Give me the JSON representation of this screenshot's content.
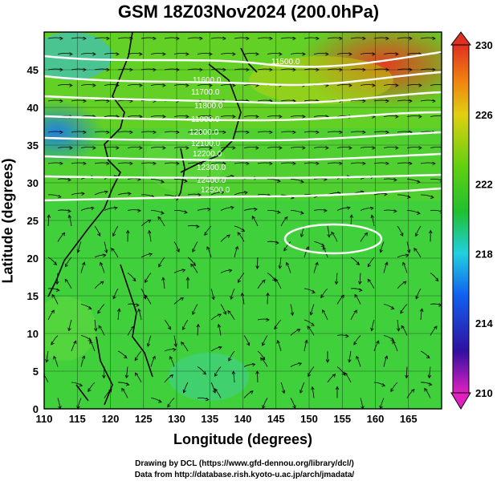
{
  "title": "GSM 18Z03Nov2024 (200.0hPa)",
  "x_axis": {
    "label": "Longitude (degrees)",
    "ticks": [
      "110",
      "115",
      "120",
      "125",
      "130",
      "135",
      "140",
      "145",
      "150",
      "155",
      "160",
      "165"
    ],
    "range": [
      110,
      170
    ]
  },
  "y_axis": {
    "label": "Latitude  (degrees)",
    "ticks": [
      "0",
      "5",
      "10",
      "15",
      "20",
      "25",
      "30",
      "35",
      "40",
      "45"
    ],
    "range": [
      0,
      50
    ]
  },
  "colorbar": {
    "ticks": [
      "210",
      "214",
      "218",
      "222",
      "226",
      "230"
    ],
    "range": [
      210,
      230
    ],
    "colors": [
      "#e020c0",
      "#1010a0",
      "#1060f0",
      "#20d0e0",
      "#20c020",
      "#60d010",
      "#e0d010",
      "#f08010",
      "#e03020"
    ]
  },
  "contour_labels": [
    "11500.0",
    "11600.0",
    "11700.0",
    "11800.0",
    "11900.0",
    "12000.0",
    "12100.0",
    "12200.0",
    "12300.0",
    "12400.0",
    "12500.0"
  ],
  "credits": {
    "drawing": "Drawing by DCL (https://www.gfd-dennou.org/library/dcl/)",
    "data": "Data from http://database.rish.kyoto-u.ac.jp/arch/jmadata/"
  }
}
